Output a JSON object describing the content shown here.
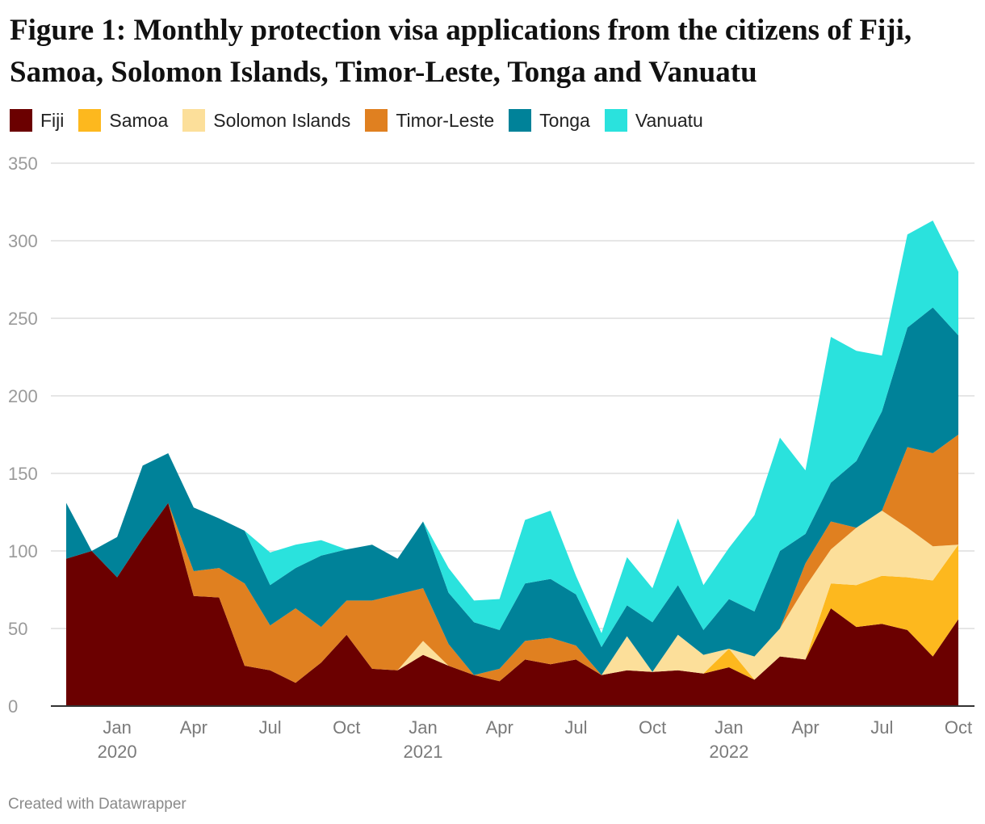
{
  "title": "Figure 1: Monthly protection visa applications from the citizens of Fiji, Samoa, Solomon Islands, Timor-Leste, Tonga and Vanuatu",
  "footer": "Created with Datawrapper",
  "chart_data": {
    "type": "area",
    "stacked": true,
    "title": "Figure 1: Monthly protection visa applications from the citizens of Fiji, Samoa, Solomon Islands, Timor-Leste, Tonga and Vanuatu",
    "xlabel": "",
    "ylabel": "",
    "ylim": [
      0,
      350
    ],
    "yticks": [
      0,
      50,
      100,
      150,
      200,
      250,
      300,
      350
    ],
    "grid": true,
    "legend_position": "top",
    "x": [
      "2019-11",
      "2019-12",
      "2020-01",
      "2020-02",
      "2020-03",
      "2020-04",
      "2020-05",
      "2020-06",
      "2020-07",
      "2020-08",
      "2020-09",
      "2020-10",
      "2020-11",
      "2020-12",
      "2021-01",
      "2021-02",
      "2021-03",
      "2021-04",
      "2021-05",
      "2021-06",
      "2021-07",
      "2021-08",
      "2021-09",
      "2021-10",
      "2021-11",
      "2021-12",
      "2022-01",
      "2022-02",
      "2022-03",
      "2022-04",
      "2022-05",
      "2022-06",
      "2022-07",
      "2022-08",
      "2022-09",
      "2022-10"
    ],
    "xticks": [
      {
        "index": 2,
        "label": "Jan",
        "year": "2020"
      },
      {
        "index": 5,
        "label": "Apr",
        "year": ""
      },
      {
        "index": 8,
        "label": "Jul",
        "year": ""
      },
      {
        "index": 11,
        "label": "Oct",
        "year": ""
      },
      {
        "index": 14,
        "label": "Jan",
        "year": "2021"
      },
      {
        "index": 17,
        "label": "Apr",
        "year": ""
      },
      {
        "index": 20,
        "label": "Jul",
        "year": ""
      },
      {
        "index": 23,
        "label": "Oct",
        "year": ""
      },
      {
        "index": 26,
        "label": "Jan",
        "year": "2022"
      },
      {
        "index": 29,
        "label": "Apr",
        "year": ""
      },
      {
        "index": 32,
        "label": "Jul",
        "year": ""
      },
      {
        "index": 35,
        "label": "Oct",
        "year": ""
      }
    ],
    "series": [
      {
        "name": "Fiji",
        "color": "#6b0000",
        "values": [
          95,
          100,
          83,
          108,
          131,
          71,
          70,
          26,
          23,
          15,
          28,
          46,
          24,
          23,
          33,
          26,
          20,
          16,
          30,
          27,
          30,
          20,
          23,
          22,
          23,
          21,
          25,
          17,
          32,
          30,
          63,
          51,
          53,
          49,
          32,
          56
        ]
      },
      {
        "name": "Samoa",
        "color": "#fdb81e",
        "values": [
          0,
          0,
          0,
          0,
          0,
          0,
          0,
          0,
          0,
          0,
          0,
          0,
          0,
          0,
          0,
          0,
          0,
          0,
          0,
          0,
          0,
          0,
          0,
          0,
          0,
          0,
          12,
          0,
          0,
          0,
          16,
          27,
          31,
          34,
          49,
          48
        ]
      },
      {
        "name": "Solomon Islands",
        "color": "#fcdf9a",
        "values": [
          0,
          0,
          0,
          0,
          0,
          0,
          0,
          0,
          0,
          0,
          0,
          0,
          0,
          0,
          9,
          0,
          0,
          0,
          0,
          0,
          0,
          0,
          22,
          0,
          23,
          12,
          0,
          15,
          18,
          47,
          22,
          37,
          42,
          32,
          22,
          0
        ]
      },
      {
        "name": "Timor-Leste",
        "color": "#e08020",
        "values": [
          0,
          0,
          0,
          0,
          0,
          16,
          19,
          53,
          29,
          48,
          23,
          22,
          44,
          49,
          34,
          14,
          0,
          8,
          12,
          17,
          9,
          0,
          0,
          0,
          0,
          0,
          0,
          0,
          0,
          15,
          18,
          0,
          0,
          52,
          60,
          71
        ]
      },
      {
        "name": "Tonga",
        "color": "#008299",
        "values": [
          36,
          0,
          26,
          47,
          32,
          41,
          32,
          34,
          26,
          26,
          46,
          33,
          36,
          23,
          43,
          33,
          34,
          25,
          37,
          38,
          33,
          18,
          20,
          32,
          32,
          16,
          32,
          29,
          50,
          19,
          25,
          43,
          64,
          77,
          94,
          64
        ]
      },
      {
        "name": "Vanuatu",
        "color": "#2ae2dd",
        "values": [
          0,
          0,
          0,
          0,
          0,
          0,
          0,
          0,
          21,
          15,
          10,
          0,
          0,
          0,
          0,
          16,
          14,
          20,
          41,
          44,
          12,
          9,
          31,
          22,
          43,
          29,
          33,
          62,
          73,
          41,
          94,
          71,
          36,
          60,
          56,
          41
        ]
      }
    ]
  }
}
